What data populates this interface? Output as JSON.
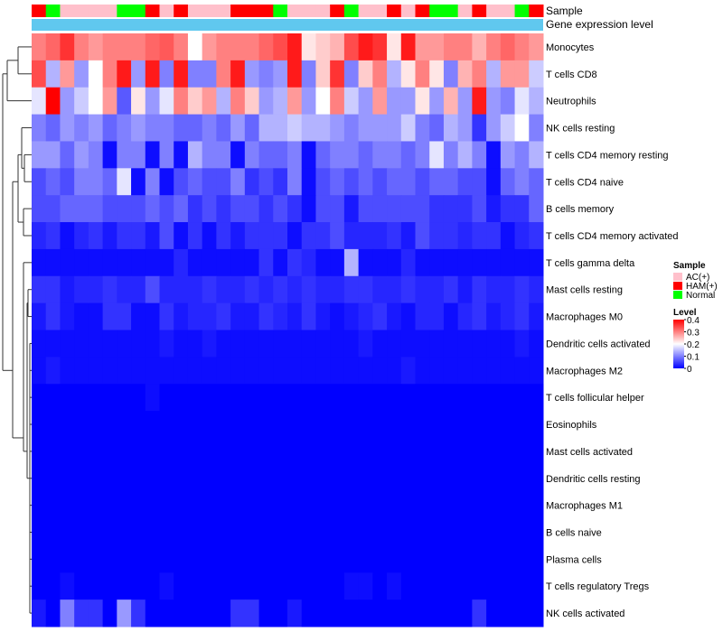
{
  "chart_data": {
    "type": "heatmap",
    "title": "",
    "annotation_tracks": [
      {
        "name": "Sample",
        "label": "Sample"
      },
      {
        "name": "Gene expression level",
        "label": "Gene expression level"
      }
    ],
    "sample_groups": [
      "HAM(+)",
      "Normal",
      "AC(+)",
      "AC(+)",
      "AC(+)",
      "AC(+)",
      "Normal",
      "Normal",
      "HAM(+)",
      "AC(+)",
      "HAM(+)",
      "AC(+)",
      "AC(+)",
      "AC(+)",
      "HAM(+)",
      "HAM(+)",
      "HAM(+)",
      "Normal",
      "AC(+)",
      "AC(+)",
      "AC(+)",
      "HAM(+)",
      "Normal",
      "AC(+)",
      "AC(+)",
      "HAM(+)",
      "AC(+)",
      "HAM(+)",
      "Normal",
      "Normal",
      "AC(+)",
      "HAM(+)",
      "AC(+)",
      "AC(+)",
      "Normal",
      "HAM(+)"
    ],
    "rows": [
      "Monocytes",
      "T cells CD8",
      "Neutrophils",
      "NK cells resting",
      "T cells CD4 memory resting",
      "T cells CD4 naive",
      "B cells memory",
      "T cells CD4 memory activated",
      "T cells gamma delta",
      "Mast cells resting",
      "Macrophages M0",
      "Dendritic cells activated",
      "Macrophages M2",
      "T cells follicular helper",
      "Eosinophils",
      "Mast cells activated",
      "Dendritic cells resting",
      "Macrophages M1",
      "B cells naive",
      "Plasma cells",
      "T cells regulatory  Tregs",
      "NK cells activated"
    ],
    "values": [
      [
        0.3,
        0.32,
        0.36,
        0.3,
        0.28,
        0.3,
        0.3,
        0.3,
        0.32,
        0.33,
        0.3,
        0.2,
        0.28,
        0.3,
        0.3,
        0.3,
        0.32,
        0.34,
        0.38,
        0.22,
        0.24,
        0.26,
        0.34,
        0.38,
        0.36,
        0.22,
        0.38,
        0.28,
        0.28,
        0.3,
        0.3,
        0.26,
        0.3,
        0.32,
        0.3,
        0.28
      ],
      [
        0.34,
        0.14,
        0.28,
        0.12,
        0.2,
        0.3,
        0.38,
        0.12,
        0.38,
        0.1,
        0.38,
        0.1,
        0.1,
        0.3,
        0.38,
        0.12,
        0.1,
        0.12,
        0.38,
        0.1,
        0.24,
        0.36,
        0.1,
        0.24,
        0.3,
        0.14,
        0.22,
        0.3,
        0.22,
        0.1,
        0.26,
        0.3,
        0.14,
        0.28,
        0.28,
        0.16
      ],
      [
        0.18,
        0.4,
        0.12,
        0.16,
        0.2,
        0.28,
        0.07,
        0.22,
        0.12,
        0.18,
        0.3,
        0.24,
        0.28,
        0.14,
        0.3,
        0.24,
        0.12,
        0.14,
        0.28,
        0.12,
        0.2,
        0.3,
        0.16,
        0.12,
        0.28,
        0.12,
        0.12,
        0.22,
        0.12,
        0.26,
        0.12,
        0.38,
        0.12,
        0.1,
        0.18,
        0.14
      ],
      [
        0.1,
        0.08,
        0.12,
        0.1,
        0.12,
        0.08,
        0.1,
        0.12,
        0.1,
        0.1,
        0.08,
        0.08,
        0.1,
        0.08,
        0.12,
        0.08,
        0.14,
        0.14,
        0.16,
        0.14,
        0.14,
        0.12,
        0.1,
        0.12,
        0.12,
        0.12,
        0.16,
        0.1,
        0.08,
        0.14,
        0.12,
        0.04,
        0.12,
        0.16,
        0.2,
        0.1
      ],
      [
        0.12,
        0.12,
        0.08,
        0.12,
        0.1,
        0.01,
        0.1,
        0.1,
        0.01,
        0.1,
        0.01,
        0.14,
        0.1,
        0.1,
        0.01,
        0.1,
        0.08,
        0.08,
        0.1,
        0.01,
        0.08,
        0.1,
        0.1,
        0.08,
        0.1,
        0.1,
        0.08,
        0.1,
        0.18,
        0.1,
        0.14,
        0.1,
        0.01,
        0.12,
        0.1,
        0.14
      ],
      [
        0.06,
        0.08,
        0.06,
        0.1,
        0.1,
        0.08,
        0.18,
        0.01,
        0.1,
        0.01,
        0.06,
        0.08,
        0.06,
        0.06,
        0.1,
        0.04,
        0.06,
        0.04,
        0.1,
        0.01,
        0.06,
        0.08,
        0.06,
        0.08,
        0.06,
        0.08,
        0.08,
        0.06,
        0.08,
        0.08,
        0.06,
        0.06,
        0.01,
        0.08,
        0.1,
        0.08
      ],
      [
        0.06,
        0.06,
        0.08,
        0.08,
        0.08,
        0.06,
        0.06,
        0.06,
        0.08,
        0.06,
        0.08,
        0.04,
        0.06,
        0.04,
        0.06,
        0.06,
        0.04,
        0.06,
        0.04,
        0.01,
        0.06,
        0.06,
        0.02,
        0.06,
        0.06,
        0.06,
        0.06,
        0.06,
        0.04,
        0.04,
        0.04,
        0.06,
        0.02,
        0.04,
        0.04,
        0.08
      ],
      [
        0.03,
        0.04,
        0.01,
        0.03,
        0.04,
        0.02,
        0.04,
        0.04,
        0.02,
        0.06,
        0.01,
        0.04,
        0.01,
        0.04,
        0.02,
        0.04,
        0.04,
        0.04,
        0.01,
        0.04,
        0.04,
        0.06,
        0.03,
        0.03,
        0.03,
        0.04,
        0.02,
        0.06,
        0.04,
        0.04,
        0.03,
        0.04,
        0.04,
        0.01,
        0.03,
        0.04
      ],
      [
        0.01,
        0.01,
        0.01,
        0.01,
        0.01,
        0.01,
        0.01,
        0.01,
        0.01,
        0.01,
        0.03,
        0.01,
        0.01,
        0.01,
        0.01,
        0.01,
        0.04,
        0.01,
        0.04,
        0.03,
        0.01,
        0.01,
        0.14,
        0.01,
        0.01,
        0.01,
        0.03,
        0.01,
        0.01,
        0.01,
        0.01,
        0.01,
        0.01,
        0.01,
        0.01,
        0.01
      ],
      [
        0.04,
        0.04,
        0.02,
        0.03,
        0.03,
        0.04,
        0.03,
        0.03,
        0.06,
        0.03,
        0.03,
        0.03,
        0.04,
        0.03,
        0.03,
        0.04,
        0.03,
        0.04,
        0.03,
        0.04,
        0.03,
        0.03,
        0.04,
        0.04,
        0.03,
        0.03,
        0.04,
        0.03,
        0.03,
        0.04,
        0.02,
        0.04,
        0.03,
        0.03,
        0.04,
        0.03
      ],
      [
        0.02,
        0.04,
        0.02,
        0.01,
        0.01,
        0.04,
        0.04,
        0.01,
        0.01,
        0.04,
        0.02,
        0.03,
        0.03,
        0.04,
        0.02,
        0.02,
        0.04,
        0.03,
        0.02,
        0.04,
        0.02,
        0.01,
        0.02,
        0.03,
        0.04,
        0.02,
        0.01,
        0.03,
        0.03,
        0.01,
        0.03,
        0.04,
        0.02,
        0.03,
        0.04,
        0.02
      ],
      [
        0.01,
        0.01,
        0.01,
        0.01,
        0.01,
        0.01,
        0.01,
        0.01,
        0.01,
        0.02,
        0.01,
        0.01,
        0.02,
        0.01,
        0.01,
        0.01,
        0.01,
        0.01,
        0.01,
        0.01,
        0.01,
        0.01,
        0.01,
        0.02,
        0.01,
        0.01,
        0.01,
        0.01,
        0.01,
        0.01,
        0.01,
        0.01,
        0.01,
        0.01,
        0.02,
        0.01
      ],
      [
        0.01,
        0.02,
        0.01,
        0.01,
        0.01,
        0.01,
        0.01,
        0.01,
        0.01,
        0.01,
        0.01,
        0.01,
        0.01,
        0.01,
        0.01,
        0.01,
        0.01,
        0.01,
        0.01,
        0.01,
        0.01,
        0.01,
        0.01,
        0.01,
        0.01,
        0.01,
        0.02,
        0.01,
        0.01,
        0.01,
        0.01,
        0.01,
        0.01,
        0.01,
        0.01,
        0.01
      ],
      [
        0.0,
        0.0,
        0.0,
        0.0,
        0.0,
        0.0,
        0.0,
        0.0,
        0.01,
        0.0,
        0.0,
        0.0,
        0.0,
        0.0,
        0.0,
        0.0,
        0.0,
        0.0,
        0.0,
        0.0,
        0.0,
        0.0,
        0.0,
        0.0,
        0.0,
        0.0,
        0.0,
        0.0,
        0.0,
        0.0,
        0.0,
        0.0,
        0.0,
        0.0,
        0.0,
        0.0
      ],
      [
        0.0,
        0.0,
        0.0,
        0.0,
        0.0,
        0.0,
        0.0,
        0.0,
        0.0,
        0.0,
        0.0,
        0.0,
        0.0,
        0.0,
        0.0,
        0.0,
        0.0,
        0.0,
        0.0,
        0.0,
        0.0,
        0.0,
        0.0,
        0.0,
        0.0,
        0.0,
        0.0,
        0.0,
        0.0,
        0.0,
        0.0,
        0.0,
        0.0,
        0.0,
        0.0,
        0.0
      ],
      [
        0.0,
        0.0,
        0.0,
        0.0,
        0.0,
        0.0,
        0.0,
        0.0,
        0.0,
        0.0,
        0.0,
        0.0,
        0.0,
        0.0,
        0.0,
        0.0,
        0.0,
        0.0,
        0.0,
        0.0,
        0.0,
        0.0,
        0.0,
        0.0,
        0.0,
        0.0,
        0.0,
        0.0,
        0.0,
        0.0,
        0.0,
        0.0,
        0.0,
        0.0,
        0.0,
        0.0
      ],
      [
        0.0,
        0.0,
        0.0,
        0.0,
        0.0,
        0.0,
        0.0,
        0.0,
        0.0,
        0.0,
        0.0,
        0.0,
        0.0,
        0.0,
        0.0,
        0.0,
        0.0,
        0.0,
        0.0,
        0.0,
        0.0,
        0.0,
        0.0,
        0.0,
        0.0,
        0.0,
        0.0,
        0.0,
        0.0,
        0.0,
        0.0,
        0.0,
        0.0,
        0.0,
        0.0,
        0.0
      ],
      [
        0.0,
        0.0,
        0.0,
        0.0,
        0.0,
        0.0,
        0.0,
        0.0,
        0.0,
        0.0,
        0.0,
        0.0,
        0.0,
        0.0,
        0.0,
        0.0,
        0.0,
        0.0,
        0.0,
        0.0,
        0.0,
        0.0,
        0.0,
        0.0,
        0.0,
        0.0,
        0.0,
        0.0,
        0.0,
        0.0,
        0.0,
        0.0,
        0.0,
        0.0,
        0.0,
        0.0
      ],
      [
        0.0,
        0.0,
        0.0,
        0.0,
        0.0,
        0.0,
        0.0,
        0.0,
        0.0,
        0.0,
        0.0,
        0.0,
        0.0,
        0.0,
        0.0,
        0.0,
        0.0,
        0.0,
        0.0,
        0.0,
        0.0,
        0.0,
        0.0,
        0.0,
        0.0,
        0.0,
        0.0,
        0.0,
        0.0,
        0.0,
        0.0,
        0.0,
        0.0,
        0.0,
        0.0,
        0.0
      ],
      [
        0.0,
        0.0,
        0.0,
        0.0,
        0.0,
        0.0,
        0.0,
        0.0,
        0.0,
        0.0,
        0.0,
        0.0,
        0.0,
        0.0,
        0.0,
        0.0,
        0.0,
        0.0,
        0.0,
        0.0,
        0.0,
        0.0,
        0.0,
        0.0,
        0.0,
        0.0,
        0.0,
        0.0,
        0.0,
        0.0,
        0.0,
        0.0,
        0.0,
        0.0,
        0.0,
        0.0
      ],
      [
        0.0,
        0.0,
        0.01,
        0.0,
        0.0,
        0.0,
        0.0,
        0.0,
        0.0,
        0.01,
        0.0,
        0.0,
        0.0,
        0.0,
        0.0,
        0.0,
        0.0,
        0.0,
        0.0,
        0.0,
        0.0,
        0.0,
        0.01,
        0.01,
        0.0,
        0.01,
        0.0,
        0.0,
        0.0,
        0.0,
        0.0,
        0.0,
        0.0,
        0.0,
        0.0,
        0.0
      ],
      [
        0.02,
        0.0,
        0.1,
        0.04,
        0.04,
        0.0,
        0.12,
        0.04,
        0.0,
        0.0,
        0.0,
        0.0,
        0.0,
        0.0,
        0.04,
        0.04,
        0.0,
        0.0,
        0.02,
        0.0,
        0.0,
        0.0,
        0.0,
        0.0,
        0.0,
        0.0,
        0.0,
        0.0,
        0.0,
        0.0,
        0.0,
        0.04,
        0.0,
        0.0,
        0.0,
        0.0
      ]
    ],
    "color_scale": {
      "low": "#0000ff",
      "mid": "#ffffff",
      "high": "#ff0000",
      "domain": [
        0,
        0.4
      ],
      "midpoint": 0.2
    },
    "legend": {
      "sample_title": "Sample",
      "sample_entries": [
        {
          "label": "AC(+)",
          "color": "#ffc0cb"
        },
        {
          "label": "HAM(+)",
          "color": "#ff0000"
        },
        {
          "label": "Normal",
          "color": "#00ff00"
        }
      ],
      "level_title": "Level",
      "level_ticks": [
        "0.4",
        "0.3",
        "0.2",
        "0.1",
        "0"
      ],
      "placement": "right"
    },
    "expression_track_color": "#60c8ef"
  }
}
